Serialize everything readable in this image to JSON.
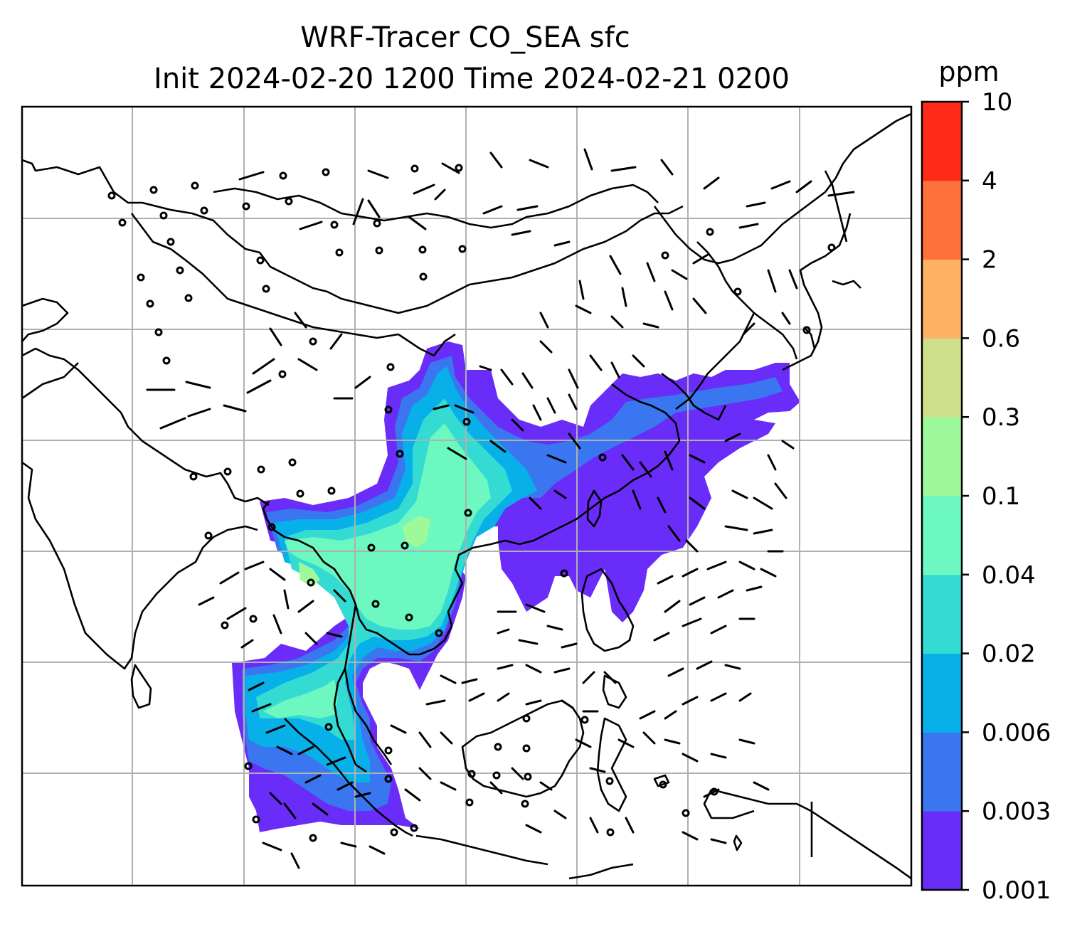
{
  "title": {
    "line1": "WRF-Tracer CO_SEA sfc",
    "line2": "Init 2024-02-20 1200 Time 2024-02-21 0200"
  },
  "colorbar": {
    "unit": "ppm",
    "levels": [
      "0.001",
      "0.003",
      "0.006",
      "0.02",
      "0.04",
      "0.1",
      "0.3",
      "0.6",
      "2",
      "4",
      "10"
    ],
    "colors": [
      "#6a2cf9",
      "#3a76f0",
      "#08b0ea",
      "#33dbd2",
      "#6cf8c0",
      "#9ef99a",
      "#cfe08a",
      "#ffb163",
      "#ff713a",
      "#ff2a18"
    ]
  },
  "map": {
    "field": "CO_SEA tracer, surface",
    "gridlines": true
  }
}
